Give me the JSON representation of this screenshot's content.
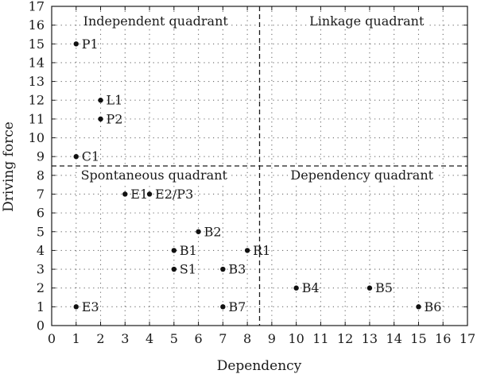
{
  "chart_data": {
    "type": "scatter",
    "xlabel": "Dependency",
    "ylabel": "Driving force",
    "xlim": [
      0,
      17
    ],
    "ylim": [
      0,
      17
    ],
    "xticks": [
      0,
      1,
      2,
      3,
      4,
      5,
      6,
      7,
      8,
      9,
      10,
      11,
      12,
      13,
      14,
      15,
      16,
      17
    ],
    "yticks": [
      0,
      1,
      2,
      3,
      4,
      5,
      6,
      7,
      8,
      9,
      10,
      11,
      12,
      13,
      14,
      15,
      16,
      17
    ],
    "grid": true,
    "dividers": {
      "x": 8.5,
      "y": 8.5
    },
    "quadrants": [
      {
        "name": "Independent quadrant",
        "position": "top-left"
      },
      {
        "name": "Linkage quadrant",
        "position": "top-right"
      },
      {
        "name": "Spontaneous quadrant",
        "position": "bottom-left"
      },
      {
        "name": "Dependency quadrant",
        "position": "bottom-right"
      }
    ],
    "points": [
      {
        "label": "P1",
        "x": 1,
        "y": 15
      },
      {
        "label": "L1",
        "x": 2,
        "y": 12
      },
      {
        "label": "P2",
        "x": 2,
        "y": 11
      },
      {
        "label": "C1",
        "x": 1,
        "y": 9
      },
      {
        "label": "E1",
        "x": 3,
        "y": 7
      },
      {
        "label": "E2/P3",
        "x": 4,
        "y": 7
      },
      {
        "label": "B2",
        "x": 6,
        "y": 5
      },
      {
        "label": "B1",
        "x": 5,
        "y": 4
      },
      {
        "label": "R1",
        "x": 8,
        "y": 4
      },
      {
        "label": "S1",
        "x": 5,
        "y": 3
      },
      {
        "label": "B3",
        "x": 7,
        "y": 3
      },
      {
        "label": "B4",
        "x": 10,
        "y": 2
      },
      {
        "label": "B5",
        "x": 13,
        "y": 2
      },
      {
        "label": "E3",
        "x": 1,
        "y": 1
      },
      {
        "label": "B7",
        "x": 7,
        "y": 1
      },
      {
        "label": "B6",
        "x": 15,
        "y": 1
      }
    ]
  }
}
